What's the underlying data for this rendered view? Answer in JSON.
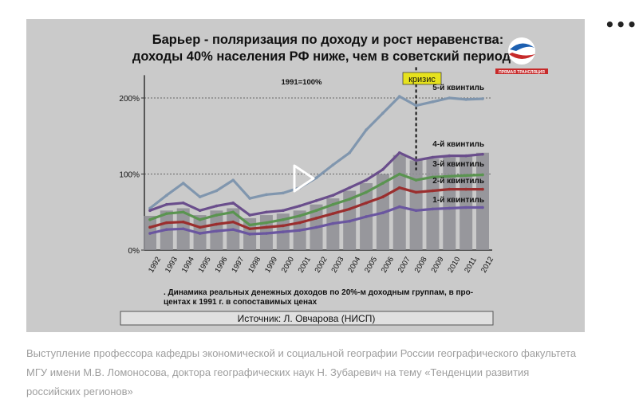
{
  "menu": {
    "icon": "more-options-icon",
    "glyph": "•••"
  },
  "slide": {
    "title_line1": "Барьер - поляризация по доходу и рост неравенства:",
    "title_line2": "доходы 40% населения РФ ниже, чем в советский период",
    "base_label": "1991=100%",
    "crisis_label": "кризис",
    "footnote_line1": ". Динамика реальных денежных доходов по 20%-м доходным группам, в про-",
    "footnote_line2": "центах к 1991 г. в сопоставимых ценах",
    "source": "Источник: Л. Овчарова (НИСП)",
    "channel_logo_text": "ПРЯМАЯ ТРАНСЛЯЦИЯ",
    "play_icon": "play-icon"
  },
  "chart_data": {
    "type": "line",
    "x": [
      "1992",
      "1993",
      "1994",
      "1995",
      "1996",
      "1997",
      "1998",
      "1999",
      "2000",
      "2001",
      "2002",
      "2003",
      "2004",
      "2005",
      "2006",
      "2007",
      "2008",
      "2009",
      "2010",
      "2011",
      "2012"
    ],
    "ylim": [
      0,
      230
    ],
    "yticks": [
      {
        "value": 0,
        "label": "0%"
      },
      {
        "value": 100,
        "label": "100%"
      },
      {
        "value": 200,
        "label": "200%"
      }
    ],
    "crisis_x": "2008",
    "bars": {
      "values": [
        45,
        52,
        55,
        46,
        52,
        55,
        42,
        46,
        48,
        52,
        60,
        68,
        78,
        88,
        100,
        125,
        118,
        120,
        122,
        125,
        128
      ],
      "color": "#8e8e94"
    },
    "series": [
      {
        "name": "5-й квинтиль",
        "color": "#8096ae",
        "values": [
          55,
          72,
          88,
          70,
          78,
          92,
          68,
          73,
          75,
          82,
          95,
          112,
          128,
          158,
          180,
          202,
          190,
          195,
          200,
          198,
          199
        ]
      },
      {
        "name": "4-й квинтиль",
        "color": "#6a4e8c",
        "values": [
          52,
          60,
          62,
          52,
          58,
          62,
          46,
          50,
          52,
          58,
          65,
          72,
          82,
          92,
          106,
          128,
          118,
          122,
          124,
          124,
          126
        ]
      },
      {
        "name": "3-й квинтиль",
        "color": "#5a9450",
        "values": [
          40,
          48,
          50,
          40,
          46,
          50,
          33,
          36,
          40,
          45,
          52,
          60,
          67,
          76,
          88,
          100,
          92,
          96,
          97,
          98,
          99
        ]
      },
      {
        "name": "2-й квинтиль",
        "color": "#9a2e2e",
        "values": [
          30,
          36,
          37,
          30,
          34,
          37,
          28,
          30,
          32,
          36,
          42,
          48,
          54,
          62,
          70,
          82,
          76,
          78,
          80,
          80,
          80
        ]
      },
      {
        "name": "1-й квинтиль",
        "color": "#6a56a0",
        "values": [
          22,
          27,
          28,
          22,
          25,
          27,
          21,
          22,
          24,
          26,
          30,
          35,
          38,
          44,
          49,
          57,
          52,
          54,
          55,
          56,
          56
        ]
      }
    ]
  },
  "caption": "Выступление профессора кафедры экономической и социальной географии России географического факультета МГУ имени М.В. Ломоносова, доктора географических наук Н. Зубаревич на тему «Тенденции развития российских регионов»"
}
